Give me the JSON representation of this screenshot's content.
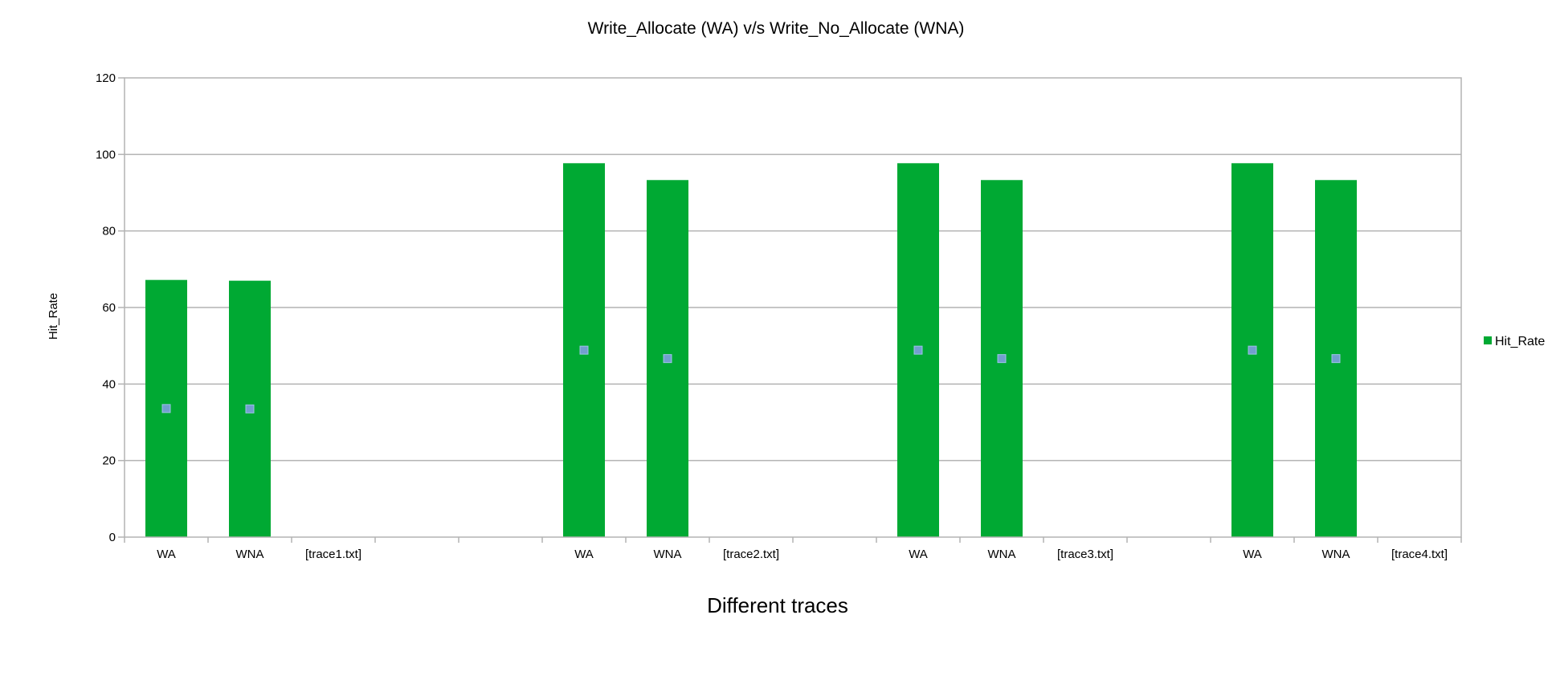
{
  "chart_data": {
    "type": "bar",
    "title": "Write_Allocate (WA) v/s Write_No_Allocate (WNA)",
    "xlabel": "Different traces",
    "ylabel": "Hit_Rate",
    "ylim": [
      0,
      120
    ],
    "yticks": [
      0,
      20,
      40,
      60,
      80,
      100,
      120
    ],
    "grid": true,
    "legend_position": "right",
    "categories": [
      "WA",
      "WNA",
      "[trace1.txt]",
      "",
      "",
      "WA",
      "WNA",
      "[trace2.txt]",
      "",
      "WA",
      "WNA",
      "[trace3.txt]",
      "",
      "WA",
      "WNA",
      "[trace4.txt]"
    ],
    "series": [
      {
        "name": "Hit_Rate",
        "color": "#00a933",
        "values": [
          67.2,
          67.0,
          null,
          null,
          null,
          97.7,
          93.3,
          null,
          null,
          97.7,
          93.3,
          null,
          null,
          97.7,
          93.3,
          null
        ]
      }
    ]
  },
  "colors": {
    "bar": "#00a933",
    "marker": "#729fcf",
    "grid": "#b3b3b3"
  }
}
